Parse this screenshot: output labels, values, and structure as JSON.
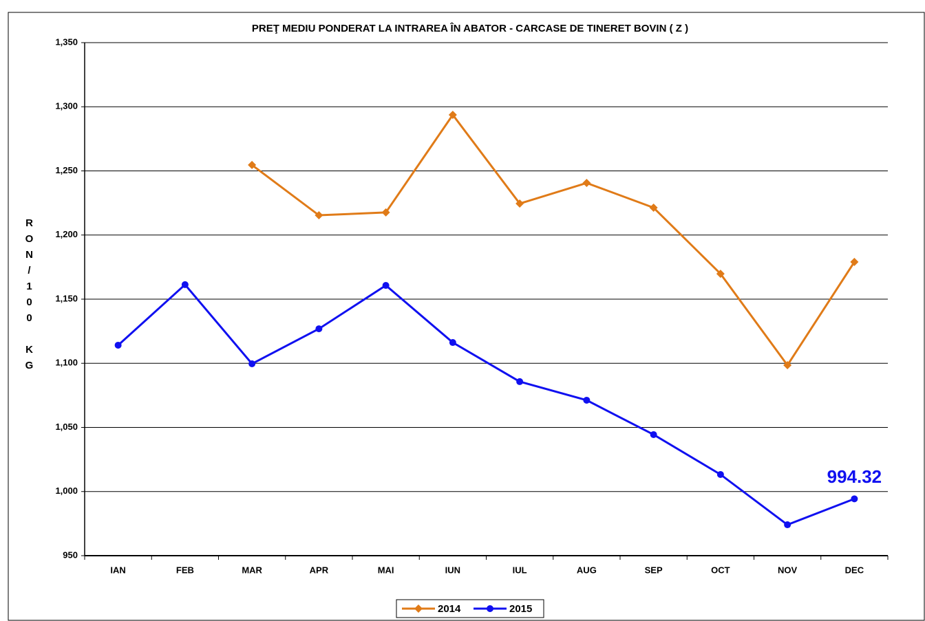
{
  "chart_data": {
    "type": "line",
    "title": "PREŢ MEDIU PONDERAT LA INTRAREA ÎN ABATOR - CARCASE DE TINERET BOVIN ( Z )",
    "y_label": "RON/100 KG",
    "categories": [
      "IAN",
      "FEB",
      "MAR",
      "APR",
      "MAI",
      "IUN",
      "IUL",
      "AUG",
      "SEP",
      "OCT",
      "NOV",
      "DEC"
    ],
    "series": [
      {
        "name": "2014",
        "color": "#e07b18",
        "marker": "diamond",
        "values": [
          null,
          null,
          1254.6,
          1215.4,
          1217.6,
          1293.7,
          1224.5,
          1240.6,
          1221.3,
          1169.8,
          1098.5,
          1179.0
        ]
      },
      {
        "name": "2015",
        "color": "#1010f0",
        "marker": "circle",
        "values": [
          1114.1,
          1161.3,
          1099.6,
          1126.9,
          1160.7,
          1116.2,
          1085.7,
          1071.2,
          1044.4,
          1013.3,
          974.1,
          994.32
        ]
      }
    ],
    "annotated_point": {
      "series": 1,
      "index": 11
    },
    "ylim": [
      950,
      1350
    ],
    "yticks": [
      {
        "value": 950,
        "label": "950"
      },
      {
        "value": 1000,
        "label": "1,000"
      },
      {
        "value": 1050,
        "label": "1,050"
      },
      {
        "value": 1100,
        "label": "1,100"
      },
      {
        "value": 1150,
        "label": "1,150"
      },
      {
        "value": 1200,
        "label": "1,200"
      },
      {
        "value": 1250,
        "label": "1,250"
      },
      {
        "value": 1300,
        "label": "1,300"
      },
      {
        "value": 1350,
        "label": "1,350"
      }
    ],
    "grid": true,
    "legend": "bottom"
  }
}
